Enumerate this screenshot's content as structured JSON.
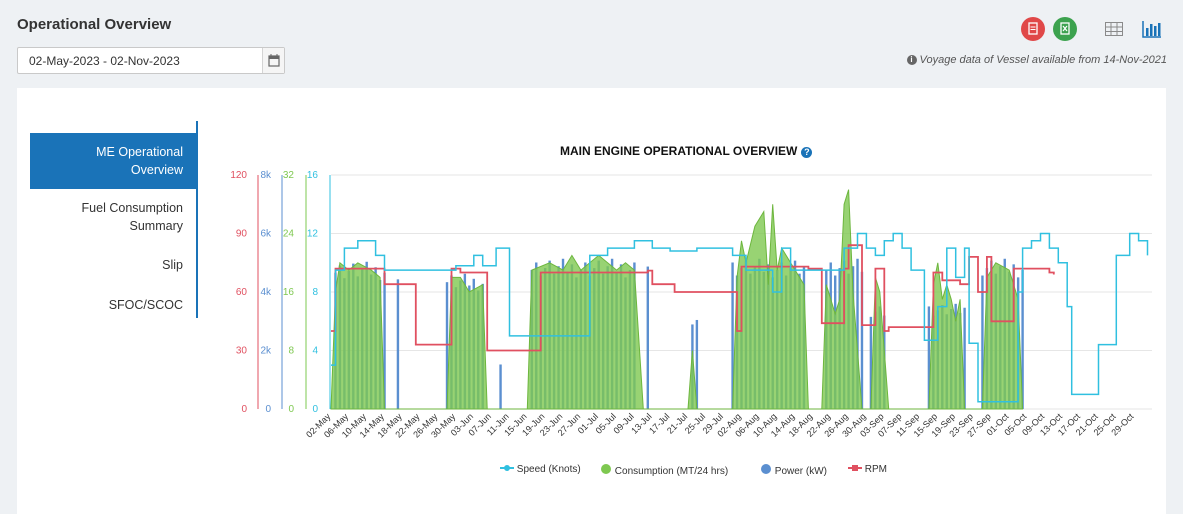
{
  "page": {
    "title": "Operational Overview",
    "date_range": "02-May-2023 - 02-Nov-2023",
    "notice": "Voyage data of Vessel available from 14-Nov-2021",
    "icons": [
      "pdf-export-icon",
      "excel-export-icon",
      "table-view-icon",
      "chart-view-icon",
      "calendar-icon",
      "info-icon",
      "help-icon"
    ]
  },
  "tabs": [
    {
      "label_lines": [
        "ME Operational",
        "Overview"
      ],
      "active": true
    },
    {
      "label_lines": [
        "Fuel Consumption",
        "Summary"
      ],
      "active": false
    },
    {
      "label_lines": [
        "Slip"
      ],
      "active": false
    },
    {
      "label_lines": [
        "SFOC/SCOC"
      ],
      "active": false
    }
  ],
  "chart_data": {
    "type": "bar",
    "title": "MAIN ENGINE OPERATIONAL OVERVIEW",
    "x_ticks": [
      "02-May",
      "06-May",
      "10-May",
      "14-May",
      "18-May",
      "22-May",
      "26-May",
      "30-May",
      "03-Jun",
      "07-Jun",
      "11-Jun",
      "15-Jun",
      "19-Jun",
      "23-Jun",
      "27-Jun",
      "01-Jul",
      "05-Jul",
      "09-Jul",
      "13-Jul",
      "17-Jul",
      "21-Jul",
      "25-Jul",
      "29-Jul",
      "02-Aug",
      "06-Aug",
      "10-Aug",
      "14-Aug",
      "18-Aug",
      "22-Aug",
      "26-Aug",
      "30-Aug",
      "03-Sep",
      "07-Sep",
      "11-Sep",
      "15-Sep",
      "19-Sep",
      "23-Sep",
      "27-Sep",
      "01-Oct",
      "05-Oct",
      "09-Oct",
      "13-Oct",
      "17-Oct",
      "21-Oct",
      "25-Oct",
      "29-Oct"
    ],
    "axes": [
      {
        "series": "RPM",
        "color": "#e05060",
        "ticks": [
          "0",
          "30",
          "60",
          "90",
          "120"
        ],
        "range": [
          0,
          120
        ]
      },
      {
        "series": "Power (kW)",
        "color": "#5b8fd0",
        "ticks": [
          "0",
          "2k",
          "4k",
          "6k",
          "8k"
        ],
        "range": [
          0,
          8000
        ]
      },
      {
        "series": "Consumption (MT/24 hrs)",
        "color": "#7ec850",
        "ticks": [
          "0",
          "8",
          "16",
          "24",
          "32"
        ],
        "range": [
          0,
          32
        ]
      },
      {
        "series": "Speed (Knots)",
        "color": "#30c0e0",
        "ticks": [
          "0",
          "4",
          "8",
          "12",
          "16"
        ],
        "range": [
          0,
          16
        ]
      }
    ],
    "series": [
      {
        "name": "Speed (Knots)",
        "color": "#30c0e0",
        "type": "step-line",
        "points": [
          [
            0,
            3
          ],
          [
            1,
            9.5
          ],
          [
            3,
            11
          ],
          [
            6,
            11.5
          ],
          [
            10,
            10.5
          ],
          [
            12,
            9.5
          ],
          [
            14,
            9.5
          ],
          [
            26,
            9.5
          ],
          [
            28,
            9.8
          ],
          [
            32,
            10.5
          ],
          [
            34,
            9.8
          ],
          [
            37,
            11
          ],
          [
            40,
            5
          ],
          [
            49,
            5
          ],
          [
            56,
            5
          ],
          [
            58,
            10.5
          ],
          [
            62,
            11
          ],
          [
            68,
            11.5
          ],
          [
            72,
            11
          ],
          [
            76,
            10.8
          ],
          [
            82,
            11
          ],
          [
            86,
            11
          ],
          [
            90,
            10.5
          ],
          [
            93,
            9.5
          ],
          [
            97,
            9.5
          ],
          [
            99,
            8
          ],
          [
            101,
            11
          ],
          [
            103,
            9.5
          ],
          [
            113,
            9.5
          ],
          [
            115,
            11
          ],
          [
            118,
            12
          ],
          [
            120,
            11
          ],
          [
            122,
            10.5
          ],
          [
            124,
            11.5
          ],
          [
            126,
            12
          ],
          [
            128,
            11
          ],
          [
            130,
            9.5
          ],
          [
            133,
            4.7
          ],
          [
            136,
            7
          ],
          [
            138,
            11
          ],
          [
            140,
            9
          ],
          [
            142,
            11
          ],
          [
            143,
            4.5
          ],
          [
            145,
            0.5
          ],
          [
            153,
            0.5
          ],
          [
            154,
            8
          ],
          [
            155,
            11
          ],
          [
            157,
            11.5
          ],
          [
            159,
            12
          ],
          [
            161,
            11
          ],
          [
            163,
            10
          ],
          [
            165,
            7
          ],
          [
            166,
            1
          ],
          [
            170,
            1
          ],
          [
            172,
            4.4
          ],
          [
            175,
            4.4
          ],
          [
            176,
            10.5
          ],
          [
            179,
            12
          ],
          [
            181,
            11.5
          ],
          [
            183,
            10.5
          ]
        ]
      },
      {
        "name": "Consumption (MT/24 hrs)",
        "color": "#7ec850",
        "type": "area",
        "points": [
          [
            0,
            0
          ],
          [
            1,
            16
          ],
          [
            2,
            20
          ],
          [
            4,
            19
          ],
          [
            6,
            20
          ],
          [
            9,
            19
          ],
          [
            11,
            18
          ],
          [
            12,
            0
          ],
          [
            26,
            0
          ],
          [
            27,
            18
          ],
          [
            29,
            18
          ],
          [
            31,
            16
          ],
          [
            34,
            17
          ],
          [
            35,
            0
          ],
          [
            44,
            0
          ],
          [
            45,
            19
          ],
          [
            49,
            20
          ],
          [
            52,
            19
          ],
          [
            54,
            21
          ],
          [
            56,
            19
          ],
          [
            58,
            20
          ],
          [
            60,
            21
          ],
          [
            62,
            20
          ],
          [
            64,
            19
          ],
          [
            66,
            20
          ],
          [
            68,
            19
          ],
          [
            70,
            0
          ],
          [
            80,
            0
          ],
          [
            81,
            8
          ],
          [
            82,
            0
          ],
          [
            90,
            0
          ],
          [
            91,
            18
          ],
          [
            92,
            23
          ],
          [
            93,
            20
          ],
          [
            95,
            25
          ],
          [
            97,
            27
          ],
          [
            98,
            17
          ],
          [
            99,
            28
          ],
          [
            100,
            19
          ],
          [
            101,
            22
          ],
          [
            103,
            20
          ],
          [
            106,
            17
          ],
          [
            107,
            0
          ],
          [
            110,
            0
          ],
          [
            111,
            17
          ],
          [
            113,
            13
          ],
          [
            114,
            15
          ],
          [
            115,
            28
          ],
          [
            116,
            30
          ],
          [
            117,
            16
          ],
          [
            118,
            8
          ],
          [
            119,
            0
          ],
          [
            121,
            0
          ],
          [
            122,
            18
          ],
          [
            123,
            16
          ],
          [
            124,
            8
          ],
          [
            125,
            0
          ],
          [
            134,
            0
          ],
          [
            135,
            17
          ],
          [
            136,
            20
          ],
          [
            137,
            15
          ],
          [
            138,
            17
          ],
          [
            139,
            15
          ],
          [
            140,
            12
          ],
          [
            141,
            15
          ],
          [
            142,
            0
          ],
          [
            146,
            0
          ],
          [
            147,
            18
          ],
          [
            149,
            20
          ],
          [
            152,
            19
          ],
          [
            154,
            15
          ],
          [
            155,
            0
          ]
        ]
      },
      {
        "name": "Power (kW)",
        "color": "#5b8fd0",
        "type": "bar",
        "segments": [
          [
            1,
            12,
            4900
          ],
          [
            15,
            15,
            4600
          ],
          [
            26,
            34,
            4500
          ],
          [
            38,
            38,
            1500
          ],
          [
            45,
            68,
            5000
          ],
          [
            71,
            71,
            4800
          ],
          [
            81,
            82,
            3000
          ],
          [
            90,
            106,
            5000
          ],
          [
            111,
            119,
            5000
          ],
          [
            121,
            124,
            3500
          ],
          [
            134,
            142,
            3500
          ],
          [
            146,
            155,
            5000
          ]
        ]
      },
      {
        "name": "RPM",
        "color": "#e05060",
        "type": "step-line",
        "points": [
          [
            0,
            40
          ],
          [
            1,
            72
          ],
          [
            11,
            72
          ],
          [
            12,
            64
          ],
          [
            13,
            64
          ],
          [
            18,
            64
          ],
          [
            19,
            33
          ],
          [
            26,
            33
          ],
          [
            27,
            72
          ],
          [
            29,
            70
          ],
          [
            34,
            70
          ],
          [
            35,
            30
          ],
          [
            46,
            30
          ],
          [
            47,
            70
          ],
          [
            70,
            70
          ],
          [
            71,
            71
          ],
          [
            72,
            64
          ],
          [
            76,
            64
          ],
          [
            77,
            60
          ],
          [
            90,
            60
          ],
          [
            91,
            40
          ],
          [
            92,
            73
          ],
          [
            106,
            73
          ],
          [
            107,
            72
          ],
          [
            110,
            44
          ],
          [
            114,
            44
          ],
          [
            115,
            72
          ],
          [
            116,
            84
          ],
          [
            118,
            84
          ],
          [
            119,
            43
          ],
          [
            121,
            43
          ],
          [
            122,
            72
          ],
          [
            123,
            72
          ],
          [
            124,
            40
          ],
          [
            125,
            42
          ],
          [
            134,
            42
          ],
          [
            135,
            70
          ],
          [
            137,
            66
          ],
          [
            141,
            64
          ],
          [
            142,
            64
          ],
          [
            143,
            78
          ],
          [
            145,
            60
          ],
          [
            147,
            78
          ],
          [
            148,
            45
          ],
          [
            152,
            45
          ],
          [
            153,
            72
          ],
          [
            160,
            72
          ],
          [
            161,
            70
          ],
          [
            162,
            69
          ]
        ]
      }
    ],
    "legend": [
      "Speed (Knots)",
      "Consumption (MT/24 hrs)",
      "Power (kW)",
      "RPM"
    ]
  }
}
